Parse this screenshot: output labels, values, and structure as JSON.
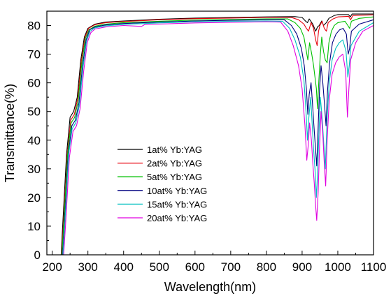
{
  "chart_data": {
    "type": "line",
    "title": "",
    "xlabel": "Wavelength(nm)",
    "ylabel": "Transmittance(%)",
    "xlim": [
      185,
      1100
    ],
    "ylim": [
      0,
      85
    ],
    "xticks": [
      200,
      300,
      400,
      500,
      600,
      700,
      800,
      900,
      1000,
      1100
    ],
    "yticks": [
      0,
      10,
      20,
      30,
      40,
      50,
      60,
      70,
      80
    ],
    "legend_position": "center-left",
    "grid": false,
    "series": [
      {
        "name": "1at% Yb:YAG",
        "color": "#000000",
        "points": [
          [
            225,
            0
          ],
          [
            230,
            12
          ],
          [
            240,
            35
          ],
          [
            250,
            48
          ],
          [
            260,
            50
          ],
          [
            270,
            55
          ],
          [
            280,
            68
          ],
          [
            290,
            76
          ],
          [
            300,
            79
          ],
          [
            320,
            80.5
          ],
          [
            350,
            81.2
          ],
          [
            400,
            81.6
          ],
          [
            500,
            82.2
          ],
          [
            600,
            82.6
          ],
          [
            700,
            82.8
          ],
          [
            800,
            83
          ],
          [
            880,
            83.1
          ],
          [
            900,
            82.8
          ],
          [
            910,
            81.5
          ],
          [
            915,
            81
          ],
          [
            920,
            82.3
          ],
          [
            930,
            80.5
          ],
          [
            938,
            78
          ],
          [
            943,
            79.5
          ],
          [
            948,
            80
          ],
          [
            955,
            81.6
          ],
          [
            960,
            80
          ],
          [
            968,
            81
          ],
          [
            975,
            82.5
          ],
          [
            990,
            83.5
          ],
          [
            1000,
            83.8
          ],
          [
            1030,
            83.8
          ],
          [
            1035,
            83
          ],
          [
            1040,
            84
          ],
          [
            1100,
            84
          ]
        ]
      },
      {
        "name": "2at% Yb:YAG",
        "color": "#e8000b",
        "points": [
          [
            226,
            0
          ],
          [
            232,
            12
          ],
          [
            242,
            35
          ],
          [
            252,
            47
          ],
          [
            262,
            49
          ],
          [
            272,
            55
          ],
          [
            282,
            68
          ],
          [
            292,
            76
          ],
          [
            302,
            79
          ],
          [
            320,
            80.3
          ],
          [
            350,
            81
          ],
          [
            400,
            81.4
          ],
          [
            500,
            82
          ],
          [
            600,
            82.4
          ],
          [
            700,
            82.6
          ],
          [
            800,
            82.8
          ],
          [
            870,
            82.8
          ],
          [
            890,
            82
          ],
          [
            905,
            80.5
          ],
          [
            912,
            79
          ],
          [
            918,
            78
          ],
          [
            925,
            81
          ],
          [
            932,
            79
          ],
          [
            938,
            75
          ],
          [
            942,
            73
          ],
          [
            946,
            78
          ],
          [
            950,
            80
          ],
          [
            956,
            81.5
          ],
          [
            962,
            79
          ],
          [
            968,
            78
          ],
          [
            973,
            81
          ],
          [
            985,
            82.2
          ],
          [
            1000,
            83
          ],
          [
            1030,
            83.2
          ],
          [
            1036,
            82
          ],
          [
            1042,
            83.5
          ],
          [
            1100,
            83.7
          ]
        ]
      },
      {
        "name": "5at% Yb:YAG",
        "color": "#00c000",
        "points": [
          [
            227,
            0
          ],
          [
            233,
            12
          ],
          [
            243,
            35
          ],
          [
            253,
            46
          ],
          [
            263,
            48
          ],
          [
            273,
            54
          ],
          [
            283,
            67
          ],
          [
            293,
            75.5
          ],
          [
            303,
            78.5
          ],
          [
            320,
            79.8
          ],
          [
            350,
            80.5
          ],
          [
            400,
            81
          ],
          [
            500,
            81.5
          ],
          [
            600,
            81.9
          ],
          [
            700,
            82.1
          ],
          [
            800,
            82.3
          ],
          [
            860,
            82.3
          ],
          [
            880,
            81
          ],
          [
            895,
            79
          ],
          [
            905,
            76
          ],
          [
            912,
            71
          ],
          [
            916,
            68
          ],
          [
            921,
            74
          ],
          [
            927,
            70
          ],
          [
            932,
            66
          ],
          [
            936,
            62
          ],
          [
            940,
            58
          ],
          [
            943,
            51
          ],
          [
            947,
            61
          ],
          [
            951,
            70
          ],
          [
            955,
            76
          ],
          [
            960,
            71
          ],
          [
            965,
            68
          ],
          [
            970,
            67
          ],
          [
            975,
            74
          ],
          [
            982,
            78
          ],
          [
            990,
            80
          ],
          [
            1000,
            81
          ],
          [
            1020,
            81.5
          ],
          [
            1028,
            80
          ],
          [
            1033,
            79
          ],
          [
            1038,
            81.5
          ],
          [
            1060,
            82.5
          ],
          [
            1100,
            83
          ]
        ]
      },
      {
        "name": "10at% Yb:YAG",
        "color": "#000080",
        "points": [
          [
            229,
            0
          ],
          [
            235,
            12
          ],
          [
            245,
            35
          ],
          [
            255,
            45
          ],
          [
            265,
            47
          ],
          [
            275,
            53
          ],
          [
            285,
            66
          ],
          [
            295,
            75
          ],
          [
            305,
            78.5
          ],
          [
            320,
            79.5
          ],
          [
            350,
            80.2
          ],
          [
            400,
            80.7
          ],
          [
            500,
            81.2
          ],
          [
            600,
            81.6
          ],
          [
            700,
            81.8
          ],
          [
            800,
            82
          ],
          [
            850,
            82
          ],
          [
            870,
            80
          ],
          [
            885,
            77
          ],
          [
            898,
            72
          ],
          [
            906,
            66
          ],
          [
            912,
            58
          ],
          [
            916,
            49
          ],
          [
            920,
            56
          ],
          [
            925,
            60
          ],
          [
            929,
            53
          ],
          [
            933,
            45
          ],
          [
            937,
            38
          ],
          [
            941,
            31
          ],
          [
            945,
            45
          ],
          [
            949,
            58
          ],
          [
            953,
            66
          ],
          [
            958,
            60
          ],
          [
            963,
            52
          ],
          [
            967,
            45
          ],
          [
            971,
            57
          ],
          [
            977,
            67
          ],
          [
            985,
            74
          ],
          [
            995,
            77
          ],
          [
            1005,
            78.5
          ],
          [
            1015,
            79
          ],
          [
            1024,
            77
          ],
          [
            1029,
            70
          ],
          [
            1033,
            72
          ],
          [
            1038,
            78
          ],
          [
            1060,
            80.5
          ],
          [
            1100,
            82
          ]
        ]
      },
      {
        "name": "15at% Yb:YAG",
        "color": "#00c0c0",
        "points": [
          [
            230,
            0
          ],
          [
            236,
            12
          ],
          [
            246,
            35
          ],
          [
            256,
            44
          ],
          [
            266,
            46
          ],
          [
            276,
            52
          ],
          [
            286,
            65
          ],
          [
            296,
            74.5
          ],
          [
            306,
            78
          ],
          [
            320,
            79.2
          ],
          [
            350,
            79.9
          ],
          [
            400,
            80.4
          ],
          [
            500,
            80.9
          ],
          [
            600,
            81.3
          ],
          [
            700,
            81.5
          ],
          [
            800,
            81.6
          ],
          [
            845,
            81.5
          ],
          [
            865,
            79
          ],
          [
            880,
            75
          ],
          [
            895,
            69
          ],
          [
            905,
            61
          ],
          [
            911,
            50
          ],
          [
            915,
            40
          ],
          [
            919,
            48
          ],
          [
            924,
            55
          ],
          [
            928,
            46
          ],
          [
            932,
            37
          ],
          [
            936,
            30
          ],
          [
            940,
            20
          ],
          [
            943,
            28
          ],
          [
            947,
            42
          ],
          [
            951,
            55
          ],
          [
            956,
            48
          ],
          [
            961,
            38
          ],
          [
            965,
            30
          ],
          [
            970,
            48
          ],
          [
            976,
            60
          ],
          [
            984,
            68
          ],
          [
            994,
            72
          ],
          [
            1004,
            74
          ],
          [
            1014,
            75
          ],
          [
            1023,
            71
          ],
          [
            1028,
            62
          ],
          [
            1032,
            66
          ],
          [
            1037,
            73
          ],
          [
            1060,
            78
          ],
          [
            1100,
            81
          ]
        ]
      },
      {
        "name": "20at% Yb:YAG",
        "color": "#e000e0",
        "points": [
          [
            232,
            0
          ],
          [
            238,
            12
          ],
          [
            248,
            34
          ],
          [
            258,
            43
          ],
          [
            268,
            45
          ],
          [
            278,
            51
          ],
          [
            288,
            64
          ],
          [
            298,
            74
          ],
          [
            308,
            77.5
          ],
          [
            320,
            78.8
          ],
          [
            350,
            79.5
          ],
          [
            400,
            80
          ],
          [
            450,
            79.7
          ],
          [
            460,
            80.4
          ],
          [
            500,
            80.5
          ],
          [
            600,
            80.9
          ],
          [
            700,
            81.1
          ],
          [
            800,
            81.3
          ],
          [
            840,
            81.2
          ],
          [
            860,
            78
          ],
          [
            875,
            73
          ],
          [
            890,
            66
          ],
          [
            900,
            58
          ],
          [
            908,
            45
          ],
          [
            913,
            33
          ],
          [
            917,
            38
          ],
          [
            921,
            46
          ],
          [
            926,
            40
          ],
          [
            930,
            32
          ],
          [
            934,
            25
          ],
          [
            938,
            17
          ],
          [
            941,
            12
          ],
          [
            945,
            22
          ],
          [
            949,
            38
          ],
          [
            953,
            50
          ],
          [
            958,
            42
          ],
          [
            962,
            32
          ],
          [
            966,
            24
          ],
          [
            970,
            40
          ],
          [
            976,
            54
          ],
          [
            984,
            63
          ],
          [
            994,
            67
          ],
          [
            1004,
            69
          ],
          [
            1014,
            70
          ],
          [
            1022,
            64
          ],
          [
            1027,
            48
          ],
          [
            1031,
            58
          ],
          [
            1036,
            68
          ],
          [
            1050,
            74
          ],
          [
            1070,
            78
          ],
          [
            1100,
            80
          ]
        ]
      }
    ]
  }
}
